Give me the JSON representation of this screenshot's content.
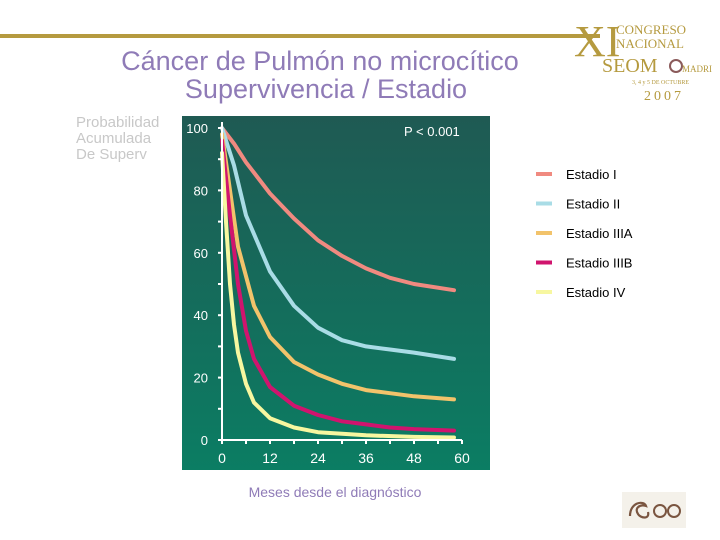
{
  "slide": {
    "title_line1": "Cáncer de Pulmón no microcítico",
    "title_line2": "Supervivencia / Estadio",
    "y_label_lines": [
      "Probabilidad",
      "Acumulada",
      "De Superv"
    ],
    "x_label": "Meses desde el diagnóstico",
    "p_value": "P < 0.001"
  },
  "colors": {
    "panel_top": "#1f5a53",
    "panel_bottom": "#0b7d63",
    "title": "#8f7bb7",
    "gold": "#b59a3f"
  },
  "logo": {
    "numeral": "XI",
    "line1": "CONGRESO",
    "line2": "NACIONAL",
    "org": "SEOM",
    "city": "MADRID",
    "dates": "3, 4 y 5 DE OCTUBRE",
    "year": "2007"
  },
  "chart_data": {
    "type": "line",
    "title": "",
    "xlabel": "Meses desde el diagnóstico",
    "ylabel": "Probabilidad Acumulada De Superv",
    "xlim": [
      0,
      60
    ],
    "ylim": [
      0,
      100
    ],
    "x_ticks": [
      0,
      12,
      24,
      36,
      48,
      60
    ],
    "y_ticks": [
      0,
      20,
      40,
      60,
      80,
      100
    ],
    "legend_position": "right",
    "series": [
      {
        "name": "Estadio I",
        "color": "#f08a80",
        "x": [
          0,
          3,
          6,
          12,
          18,
          24,
          30,
          36,
          42,
          48,
          58
        ],
        "y": [
          100,
          95,
          89,
          79,
          71,
          64,
          59,
          55,
          52,
          50,
          48
        ]
      },
      {
        "name": "Estadio II",
        "color": "#a9dce6",
        "x": [
          0,
          3,
          6,
          12,
          18,
          24,
          30,
          36,
          42,
          48,
          58
        ],
        "y": [
          100,
          88,
          72,
          54,
          43,
          36,
          32,
          30,
          29,
          28,
          26
        ]
      },
      {
        "name": "Estadio IIIA",
        "color": "#f2c36b",
        "x": [
          0,
          2,
          4,
          8,
          12,
          18,
          24,
          30,
          36,
          42,
          48,
          58
        ],
        "y": [
          98,
          80,
          62,
          43,
          33,
          25,
          21,
          18,
          16,
          15,
          14,
          13
        ]
      },
      {
        "name": "Estadio IIIB",
        "color": "#d0146e",
        "x": [
          0,
          2,
          4,
          6,
          8,
          12,
          18,
          24,
          30,
          36,
          42,
          48,
          58
        ],
        "y": [
          96,
          72,
          50,
          35,
          26,
          17,
          11,
          8,
          6,
          5,
          4,
          3.5,
          3
        ]
      },
      {
        "name": "Estadio IV",
        "color": "#f7f7a0",
        "x": [
          0,
          1,
          2,
          3,
          4,
          6,
          8,
          12,
          18,
          24,
          30,
          36,
          48,
          58
        ],
        "y": [
          92,
          70,
          50,
          37,
          28,
          18,
          12,
          7,
          4,
          2.5,
          2,
          1.5,
          1,
          0.8
        ]
      }
    ]
  }
}
